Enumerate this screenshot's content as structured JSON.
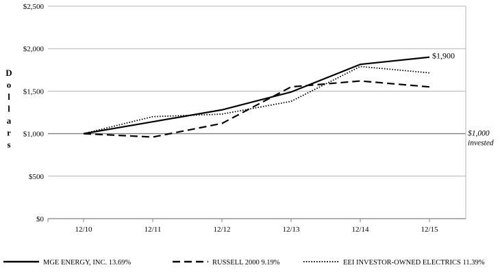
{
  "chart_data": {
    "type": "line",
    "title": "",
    "xlabel": "",
    "ylabel": "Dollars",
    "categories": [
      "12/10",
      "12/11",
      "12/12",
      "12/13",
      "12/14",
      "12/15"
    ],
    "ylim": [
      0,
      2500
    ],
    "yticks": [
      0,
      500,
      1000,
      1500,
      2000,
      2500
    ],
    "ytick_labels": [
      "$0",
      "$500",
      "$1,000",
      "$1,500",
      "$2,000",
      "$2,500"
    ],
    "grid": true,
    "legend_position": "bottom",
    "series": [
      {
        "name": "MGE ENERGY, INC. 13.69%",
        "style": "solid",
        "color": "#000000",
        "values": [
          1000,
          1140,
          1280,
          1490,
          1815,
          1900
        ]
      },
      {
        "name": "RUSSELL 2000 9.19%",
        "style": "dashed",
        "color": "#000000",
        "values": [
          1000,
          960,
          1120,
          1550,
          1620,
          1550
        ]
      },
      {
        "name": "EEI  INVESTOR-OWNED ELECTRICS 11.39%",
        "style": "dotted",
        "color": "#000000",
        "values": [
          1000,
          1200,
          1230,
          1380,
          1790,
          1715
        ]
      }
    ],
    "annotations": [
      {
        "text": "$1,900",
        "x": "12/15",
        "y": 1900
      },
      {
        "text": "$1,000",
        "text2": "invested",
        "x": "right",
        "y": 1000
      }
    ]
  }
}
